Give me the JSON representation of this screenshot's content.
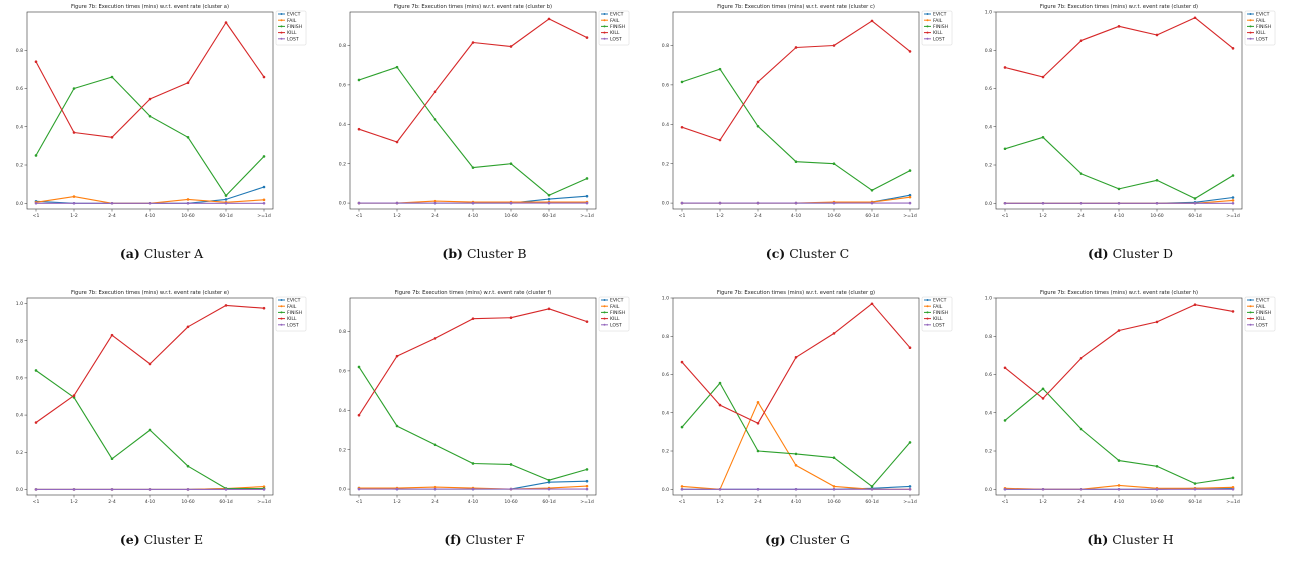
{
  "figure": {
    "colors": {
      "EVICT": "#1f77b4",
      "FAIL": "#ff7f0e",
      "FINISH": "#2ca02c",
      "KILL": "#d62728",
      "LOST": "#9467bd"
    }
  },
  "chart_data": [
    {
      "type": "line",
      "title": "Figure 7b: Execution times (mins) w.r.t. event rate (cluster a)",
      "caption_label": "(a)",
      "caption_text": "Cluster A",
      "categories": [
        "<1",
        "1-2",
        "2-4",
        "4-10",
        "10-60",
        "60-1d",
        ">=1d"
      ],
      "yticks": [
        "0.0",
        "0.2",
        "0.4",
        "0.6",
        "0.8"
      ],
      "ylim": [
        -0.03,
        1.0
      ],
      "legend": "outside-top-right",
      "grid": false,
      "series": [
        {
          "name": "EVICT",
          "values": [
            0.01,
            0.0,
            0.0,
            0.0,
            0.0,
            0.02,
            0.085
          ]
        },
        {
          "name": "FAIL",
          "values": [
            0.005,
            0.035,
            0.0,
            0.0,
            0.02,
            0.005,
            0.018
          ]
        },
        {
          "name": "FINISH",
          "values": [
            0.25,
            0.6,
            0.66,
            0.455,
            0.345,
            0.04,
            0.245
          ]
        },
        {
          "name": "KILL",
          "values": [
            0.74,
            0.37,
            0.345,
            0.545,
            0.63,
            0.945,
            0.66
          ]
        },
        {
          "name": "LOST",
          "values": [
            0.0,
            0.0,
            0.0,
            0.0,
            0.0,
            0.0,
            0.0
          ]
        }
      ]
    },
    {
      "type": "line",
      "title": "Figure 7b: Execution times (mins) w.r.t. event rate (cluster b)",
      "caption_label": "(b)",
      "caption_text": "Cluster B",
      "categories": [
        "<1",
        "1-2",
        "2-4",
        "4-10",
        "10-60",
        "60-1d",
        ">=1d"
      ],
      "yticks": [
        "0.0",
        "0.2",
        "0.4",
        "0.6",
        "0.8"
      ],
      "ylim": [
        -0.03,
        0.97
      ],
      "legend": "outside-top-right",
      "grid": false,
      "series": [
        {
          "name": "EVICT",
          "values": [
            0.0,
            0.0,
            0.0,
            0.0,
            0.0,
            0.02,
            0.035
          ]
        },
        {
          "name": "FAIL",
          "values": [
            0.0,
            0.0,
            0.01,
            0.005,
            0.005,
            0.005,
            0.005
          ]
        },
        {
          "name": "FINISH",
          "values": [
            0.625,
            0.69,
            0.425,
            0.18,
            0.2,
            0.04,
            0.125
          ]
        },
        {
          "name": "KILL",
          "values": [
            0.375,
            0.31,
            0.565,
            0.815,
            0.795,
            0.935,
            0.84
          ]
        },
        {
          "name": "LOST",
          "values": [
            0.0,
            0.0,
            0.0,
            0.0,
            0.0,
            0.0,
            0.0
          ]
        }
      ]
    },
    {
      "type": "line",
      "title": "Figure 7b: Execution times (mins) w.r.t. event rate (cluster c)",
      "caption_label": "(c)",
      "caption_text": "Cluster C",
      "categories": [
        "<1",
        "1-2",
        "2-4",
        "4-10",
        "10-60",
        "60-1d",
        ">=1d"
      ],
      "yticks": [
        "0.0",
        "0.2",
        "0.4",
        "0.6",
        "0.8"
      ],
      "ylim": [
        -0.03,
        0.97
      ],
      "legend": "outside-top-right",
      "grid": false,
      "series": [
        {
          "name": "EVICT",
          "values": [
            0.0,
            0.0,
            0.0,
            0.0,
            0.0,
            0.005,
            0.04
          ]
        },
        {
          "name": "FAIL",
          "values": [
            0.0,
            0.0,
            0.0,
            0.0,
            0.005,
            0.005,
            0.03
          ]
        },
        {
          "name": "FINISH",
          "values": [
            0.615,
            0.68,
            0.39,
            0.21,
            0.2,
            0.065,
            0.165
          ]
        },
        {
          "name": "KILL",
          "values": [
            0.385,
            0.32,
            0.615,
            0.79,
            0.8,
            0.925,
            0.77
          ]
        },
        {
          "name": "LOST",
          "values": [
            0.0,
            0.0,
            0.0,
            0.0,
            0.0,
            0.0,
            0.0
          ]
        }
      ]
    },
    {
      "type": "line",
      "title": "Figure 7b: Execution times (mins) w.r.t. event rate (cluster d)",
      "caption_label": "(d)",
      "caption_text": "Cluster D",
      "categories": [
        "<1",
        "1-2",
        "2-4",
        "4-10",
        "10-60",
        "60-1d",
        ">=1d"
      ],
      "yticks": [
        "0.0",
        "0.2",
        "0.4",
        "0.6",
        "0.8",
        "1.0"
      ],
      "ylim": [
        -0.03,
        1.0
      ],
      "legend": "outside-top-right",
      "grid": false,
      "series": [
        {
          "name": "EVICT",
          "values": [
            0.0,
            0.0,
            0.0,
            0.0,
            0.0,
            0.005,
            0.03
          ]
        },
        {
          "name": "FAIL",
          "values": [
            0.0,
            0.0,
            0.0,
            0.0,
            0.0,
            0.0,
            0.015
          ]
        },
        {
          "name": "FINISH",
          "values": [
            0.285,
            0.345,
            0.155,
            0.075,
            0.12,
            0.025,
            0.145
          ]
        },
        {
          "name": "KILL",
          "values": [
            0.71,
            0.66,
            0.85,
            0.925,
            0.88,
            0.97,
            0.81
          ]
        },
        {
          "name": "LOST",
          "values": [
            0.0,
            0.0,
            0.0,
            0.0,
            0.0,
            0.0,
            0.0
          ]
        }
      ]
    },
    {
      "type": "line",
      "title": "Figure 7b: Execution times (mins) w.r.t. event rate (cluster e)",
      "caption_label": "(e)",
      "caption_text": "Cluster E",
      "categories": [
        "<1",
        "1-2",
        "2-4",
        "4-10",
        "10-60",
        "60-1d",
        ">=1d"
      ],
      "yticks": [
        "0.0",
        "0.2",
        "0.4",
        "0.6",
        "0.8",
        "1.0"
      ],
      "ylim": [
        -0.03,
        1.03
      ],
      "legend": "outside-top-right",
      "grid": false,
      "series": [
        {
          "name": "EVICT",
          "values": [
            0.0,
            0.0,
            0.0,
            0.0,
            0.0,
            0.005,
            0.005
          ]
        },
        {
          "name": "FAIL",
          "values": [
            0.0,
            0.0,
            0.0,
            0.0,
            0.0,
            0.005,
            0.015
          ]
        },
        {
          "name": "FINISH",
          "values": [
            0.64,
            0.495,
            0.165,
            0.32,
            0.125,
            0.005,
            0.005
          ]
        },
        {
          "name": "KILL",
          "values": [
            0.36,
            0.505,
            0.83,
            0.675,
            0.875,
            0.99,
            0.975
          ]
        },
        {
          "name": "LOST",
          "values": [
            0.0,
            0.0,
            0.0,
            0.0,
            0.0,
            0.0,
            0.0
          ]
        }
      ]
    },
    {
      "type": "line",
      "title": "Figure 7b: Execution times (mins) w.r.t. event rate (cluster f)",
      "caption_label": "(f)",
      "caption_text": "Cluster F",
      "categories": [
        "<1",
        "1-2",
        "2-4",
        "4-10",
        "10-60",
        "60-1d",
        ">=1d"
      ],
      "yticks": [
        "0.0",
        "0.2",
        "0.4",
        "0.6",
        "0.8"
      ],
      "ylim": [
        -0.03,
        0.97
      ],
      "legend": "outside-top-right",
      "grid": false,
      "series": [
        {
          "name": "EVICT",
          "values": [
            0.005,
            0.0,
            0.0,
            0.0,
            0.0,
            0.035,
            0.04
          ]
        },
        {
          "name": "FAIL",
          "values": [
            0.005,
            0.005,
            0.01,
            0.005,
            0.0,
            0.005,
            0.015
          ]
        },
        {
          "name": "FINISH",
          "values": [
            0.62,
            0.32,
            0.225,
            0.13,
            0.125,
            0.045,
            0.1
          ]
        },
        {
          "name": "KILL",
          "values": [
            0.375,
            0.675,
            0.765,
            0.865,
            0.87,
            0.915,
            0.85
          ]
        },
        {
          "name": "LOST",
          "values": [
            0.0,
            0.0,
            0.0,
            0.0,
            0.0,
            0.0,
            0.0
          ]
        }
      ]
    },
    {
      "type": "line",
      "title": "Figure 7b: Execution times (mins) w.r.t. event rate (cluster g)",
      "caption_label": "(g)",
      "caption_text": "Cluster G",
      "categories": [
        "<1",
        "1-2",
        "2-4",
        "4-10",
        "10-60",
        "60-1d",
        ">=1d"
      ],
      "yticks": [
        "0.0",
        "0.2",
        "0.4",
        "0.6",
        "0.8",
        "1.0"
      ],
      "ylim": [
        -0.03,
        1.0
      ],
      "legend": "outside-top-right",
      "grid": false,
      "series": [
        {
          "name": "EVICT",
          "values": [
            0.0,
            0.0,
            0.0,
            0.0,
            0.0,
            0.005,
            0.015
          ]
        },
        {
          "name": "FAIL",
          "values": [
            0.015,
            0.0,
            0.455,
            0.125,
            0.015,
            0.0,
            0.0
          ]
        },
        {
          "name": "FINISH",
          "values": [
            0.325,
            0.555,
            0.2,
            0.185,
            0.165,
            0.015,
            0.245
          ]
        },
        {
          "name": "KILL",
          "values": [
            0.665,
            0.44,
            0.345,
            0.69,
            0.815,
            0.97,
            0.74
          ]
        },
        {
          "name": "LOST",
          "values": [
            0.0,
            0.0,
            0.0,
            0.0,
            0.0,
            0.0,
            0.0
          ]
        }
      ]
    },
    {
      "type": "line",
      "title": "Figure 7b: Execution times (mins) w.r.t. event rate (cluster h)",
      "caption_label": "(h)",
      "caption_text": "Cluster H",
      "categories": [
        "<1",
        "1-2",
        "2-4",
        "4-10",
        "10-60",
        "60-1d",
        ">=1d"
      ],
      "yticks": [
        "0.0",
        "0.2",
        "0.4",
        "0.6",
        "0.8",
        "1.0"
      ],
      "ylim": [
        -0.03,
        1.0
      ],
      "legend": "outside-top-right",
      "grid": false,
      "series": [
        {
          "name": "EVICT",
          "values": [
            0.0,
            0.0,
            0.0,
            0.0,
            0.0,
            0.005,
            0.005
          ]
        },
        {
          "name": "FAIL",
          "values": [
            0.005,
            0.0,
            0.0,
            0.02,
            0.005,
            0.005,
            0.01
          ]
        },
        {
          "name": "FINISH",
          "values": [
            0.36,
            0.525,
            0.315,
            0.15,
            0.12,
            0.03,
            0.06
          ]
        },
        {
          "name": "KILL",
          "values": [
            0.635,
            0.475,
            0.685,
            0.83,
            0.875,
            0.965,
            0.93
          ]
        },
        {
          "name": "LOST",
          "values": [
            0.0,
            0.0,
            0.0,
            0.0,
            0.0,
            0.0,
            0.0
          ]
        }
      ]
    }
  ]
}
